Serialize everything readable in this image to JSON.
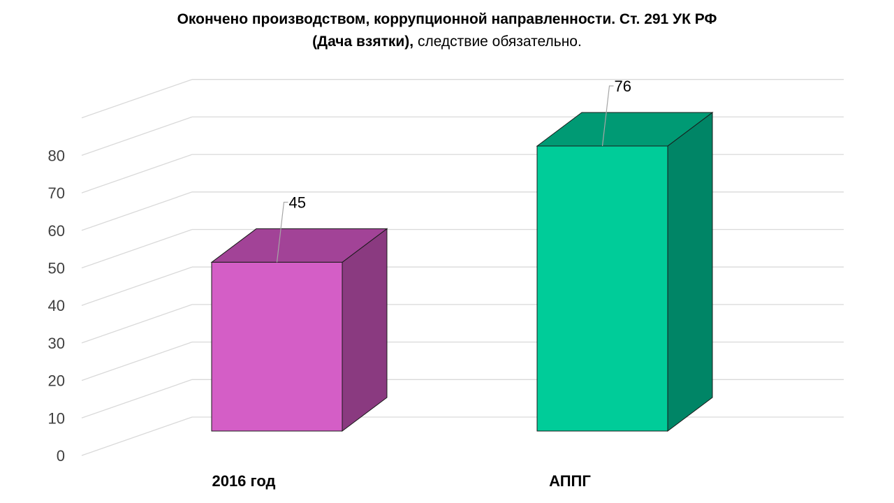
{
  "chart_data": {
    "type": "bar",
    "title_bold": "Окончено производством, коррупционной направленности. Ст. 291 УК РФ",
    "title_bold_2": "(Дача взятки),",
    "title_normal": " следствие обязательно.",
    "categories": [
      "2016 год",
      "АППГ"
    ],
    "values": [
      45,
      76
    ],
    "value_labels": [
      "45",
      "76"
    ],
    "ylim": [
      0,
      80
    ],
    "yticks": [
      "0",
      "10",
      "20",
      "30",
      "40",
      "50",
      "60",
      "70",
      "80"
    ],
    "grid": true,
    "legend": "none",
    "style": "3d-column",
    "colors": {
      "bars": [
        "#d45ec6",
        "#00cc99"
      ],
      "bar_tops": [
        "#a24397",
        "#009a74"
      ],
      "bar_sides": [
        "#8a3a80",
        "#008566"
      ],
      "grid": "#d9d9d9",
      "tick_text": "#404040"
    }
  }
}
